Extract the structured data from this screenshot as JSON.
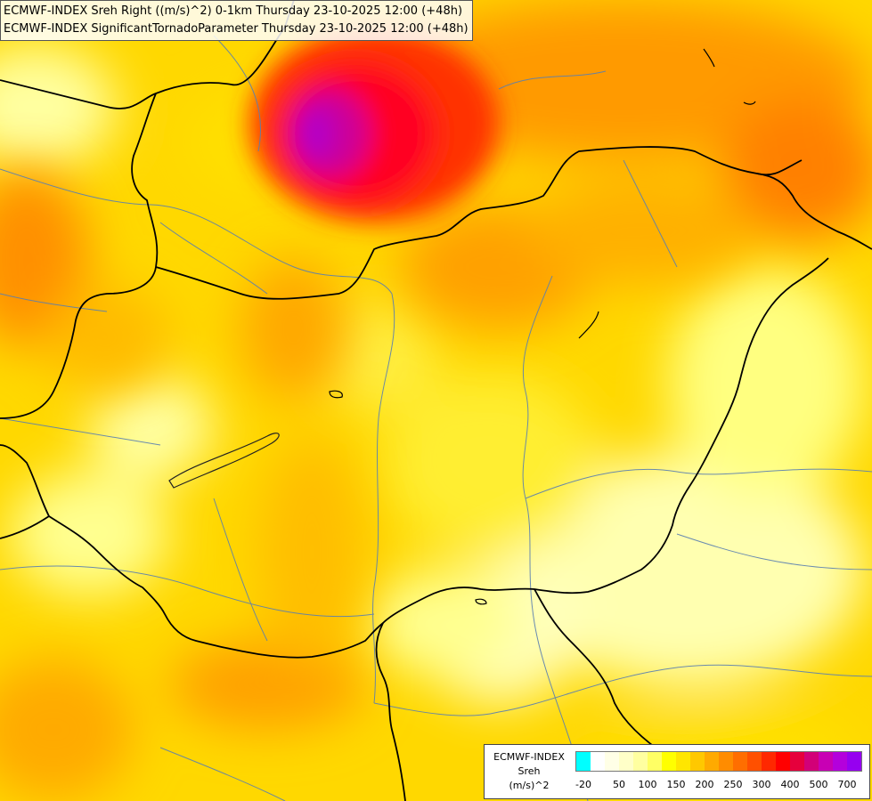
{
  "titles": {
    "line1": "ECMWF-INDEX Sreh Right ((m/s)^2) 0-1km Thursday 23-10-2025 12:00 (+48h)",
    "line2": "ECMWF-INDEX SignificantTornadoParameter Thursday 23-10-2025 12:00 (+48h)"
  },
  "legend": {
    "model": "ECMWF-INDEX",
    "parameter": "Sreh",
    "unit": "(m/s)^2",
    "colors": [
      "#00ffff",
      "#ffffff",
      "#ffffe6",
      "#ffffc8",
      "#ffffa0",
      "#ffff64",
      "#ffff00",
      "#ffe600",
      "#ffc800",
      "#ffaa00",
      "#ff8c00",
      "#ff6e00",
      "#ff5000",
      "#ff2800",
      "#ff0000",
      "#e6003c",
      "#d20078",
      "#c800b4",
      "#b400dc",
      "#9600f0",
      "#7800dc",
      "#5000be",
      "#2800a0",
      "#000080"
    ],
    "ticks": [
      {
        "label": "-20",
        "index": 0.5
      },
      {
        "label": "50",
        "index": 3
      },
      {
        "label": "100",
        "index": 5
      },
      {
        "label": "150",
        "index": 7
      },
      {
        "label": "200",
        "index": 9
      },
      {
        "label": "250",
        "index": 11
      },
      {
        "label": "300",
        "index": 13
      },
      {
        "label": "400",
        "index": 15
      },
      {
        "label": "500",
        "index": 17
      },
      {
        "label": "700",
        "index": 19
      }
    ]
  }
}
